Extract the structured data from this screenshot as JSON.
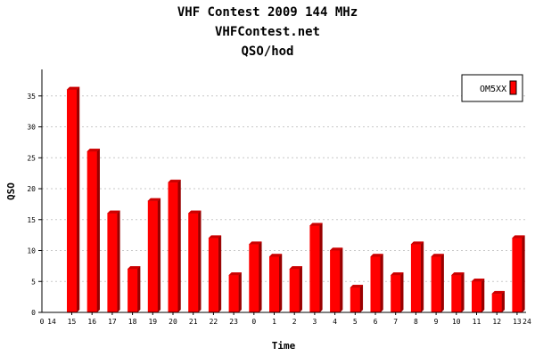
{
  "titles": {
    "line1": "VHF Contest 2009 144 MHz",
    "line2": "VHFContest.net",
    "line3": "QSO/hod"
  },
  "colors": {
    "bar_face": "#ff0000",
    "bar_top": "#cc0000",
    "bar_side": "#990000",
    "grid": "#c8c8c8",
    "axis": "#000000"
  },
  "chart_data": {
    "type": "bar",
    "title": "VHF Contest 2009 144 MHz",
    "xlabel": "Time",
    "ylabel": "QSO",
    "ylim": [
      0,
      39
    ],
    "yticks": [
      0,
      5,
      10,
      15,
      20,
      25,
      30,
      35
    ],
    "grid": true,
    "legend_position": "top-right",
    "x_edge_labels": [
      "0",
      "14",
      "24"
    ],
    "categories": [
      "15",
      "16",
      "17",
      "18",
      "19",
      "20",
      "21",
      "22",
      "23",
      "0",
      "1",
      "2",
      "3",
      "4",
      "5",
      "6",
      "7",
      "8",
      "9",
      "10",
      "11",
      "12",
      "13"
    ],
    "series": [
      {
        "name": "OM5XX",
        "color": "#ff0000",
        "values": [
          36,
          26,
          16,
          7,
          18,
          21,
          16,
          12,
          6,
          11,
          9,
          7,
          14,
          10,
          4,
          9,
          6,
          11,
          9,
          6,
          5,
          3,
          12
        ]
      }
    ]
  }
}
